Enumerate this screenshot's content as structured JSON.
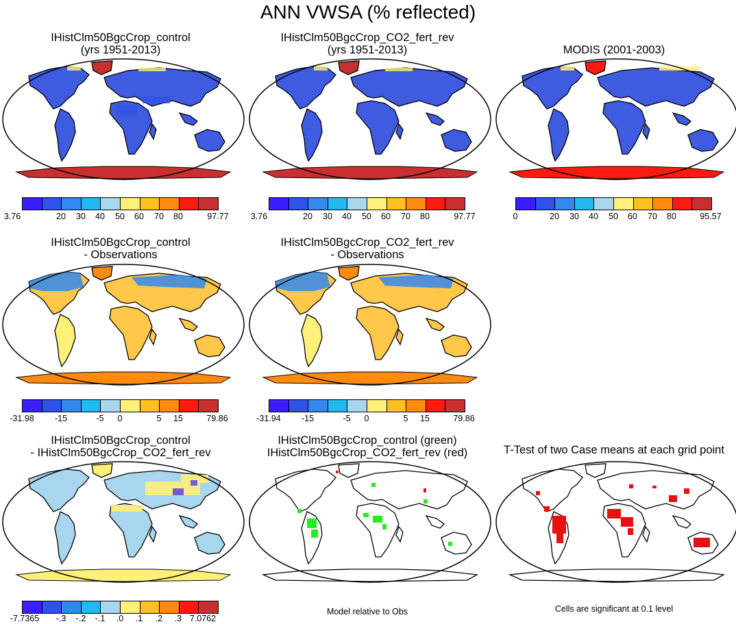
{
  "title": "ANN VWSA (% reflected)",
  "palette": [
    "#3b1eff",
    "#2f52e8",
    "#3388ee",
    "#22b8f0",
    "#a8d6ee",
    "#fff07a",
    "#ffc020",
    "#ff8a10",
    "#ff1a10",
    "#c83030"
  ],
  "panels": {
    "p1": {
      "line1": "IHistClm50BgcCrop_control",
      "line2": "(yrs 1951-2013)"
    },
    "p2": {
      "line1": "IHistClm50BgcCrop_CO2_fert_rev",
      "line2": "(yrs 1951-2013)"
    },
    "p3": {
      "line1": "MODIS (2001-2003)",
      "line2": ""
    },
    "p4": {
      "line1": "IHistClm50BgcCrop_control",
      "line2": "- Observations"
    },
    "p5": {
      "line1": "IHistClm50BgcCrop_CO2_fert_rev",
      "line2": "- Observations"
    },
    "p7": {
      "line1": "IHistClm50BgcCrop_control",
      "line2": "- IHistClm50BgcCrop_CO2_fert_rev"
    },
    "p8": {
      "line1": "IHistClm50BgcCrop_control (green)",
      "line2": "IHistClm50BgcCrop_CO2_fert_rev (red)"
    },
    "p9": {
      "line1": "T-Test of two Case means at each grid point",
      "line2": ""
    }
  },
  "colorbars": {
    "cb1": [
      "3.76",
      "20",
      "30",
      "40",
      "50",
      "60",
      "70",
      "80",
      "97.77"
    ],
    "cb2": [
      "3.76",
      "20",
      "30",
      "40",
      "50",
      "60",
      "70",
      "80",
      "97.77"
    ],
    "cb3": [
      "0",
      "20",
      "30",
      "40",
      "50",
      "60",
      "70",
      "80",
      "95.57"
    ],
    "cb4": [
      "-31.98",
      "-15",
      "-5",
      "0",
      "5",
      "15",
      "79.86"
    ],
    "cb5": [
      "-31.94",
      "-15",
      "-5",
      "0",
      "5",
      "15",
      "79.86"
    ],
    "cb7": [
      "-7.7365",
      "-.3",
      "-.2",
      "-.1",
      ".0",
      ".1",
      ".2",
      ".3",
      "7.0762"
    ]
  },
  "notes": {
    "model_rel": "Model relative to Obs",
    "significance": "Cells are significant at 0.1 level"
  }
}
